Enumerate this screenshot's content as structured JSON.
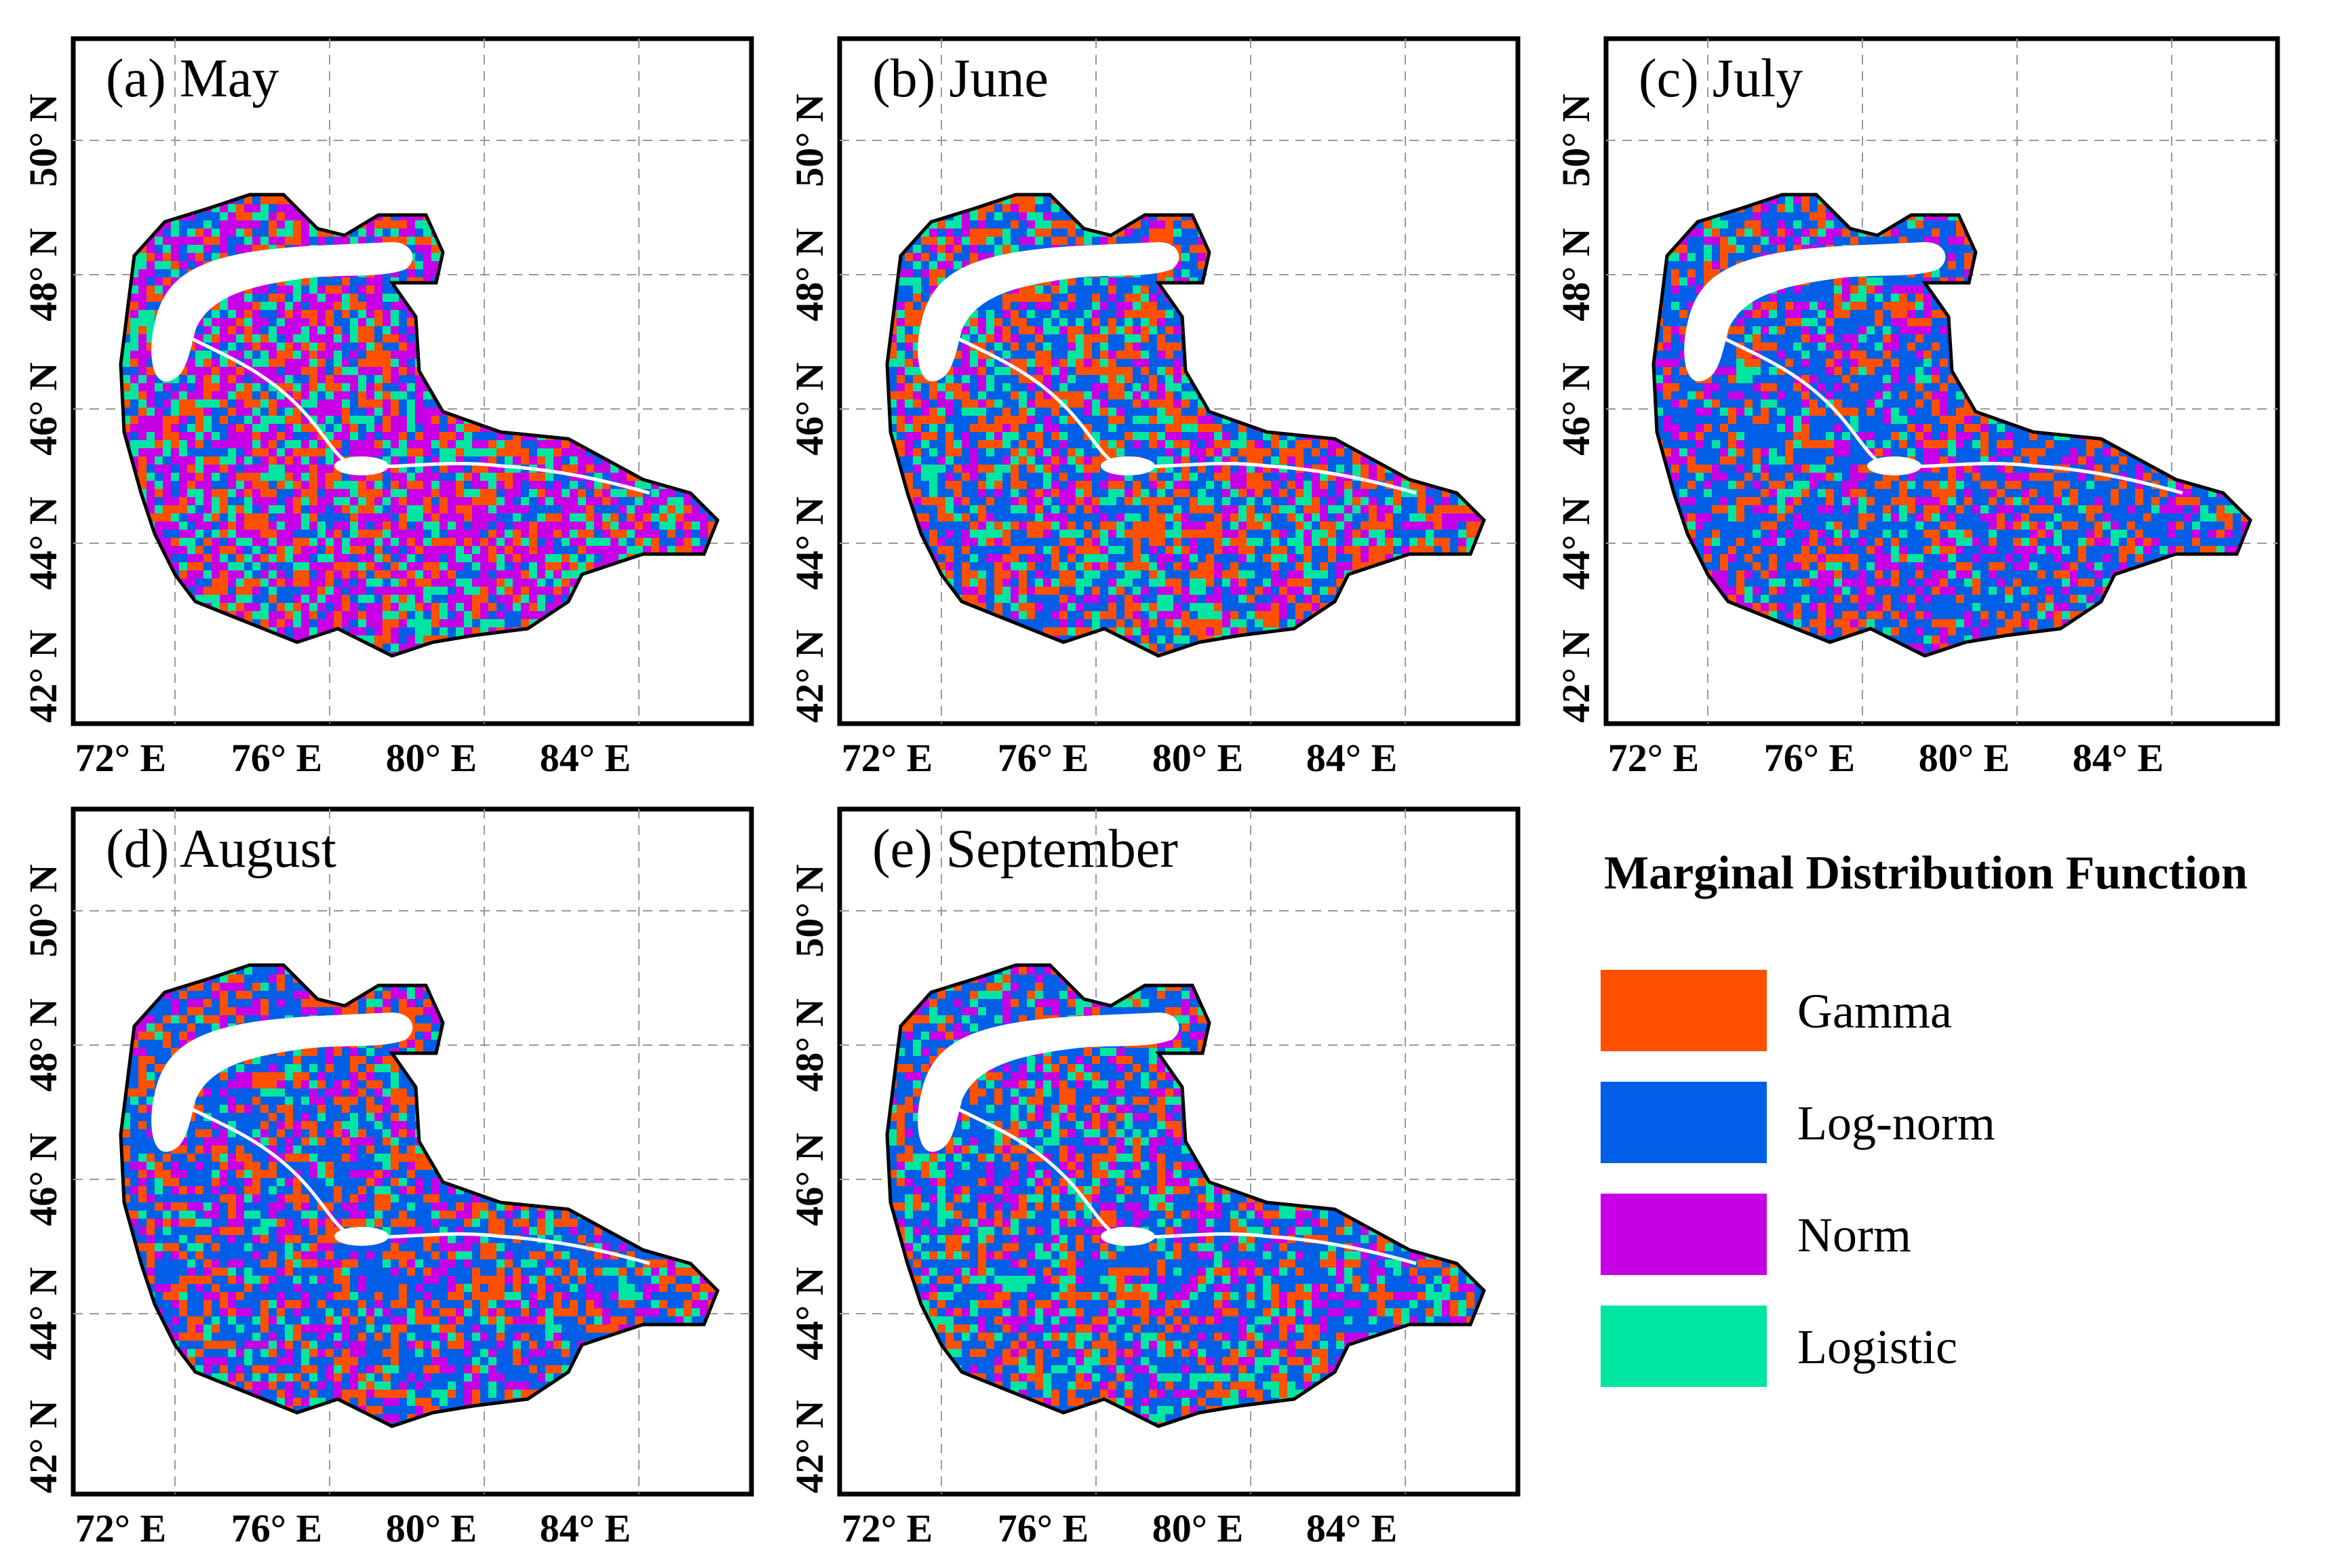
{
  "panels": [
    {
      "id": "a",
      "title": "(a) May"
    },
    {
      "id": "b",
      "title": "(b) June"
    },
    {
      "id": "c",
      "title": "(c) July"
    },
    {
      "id": "d",
      "title": "(d) August"
    },
    {
      "id": "e",
      "title": "(e) September"
    }
  ],
  "axes": {
    "lat_labels": [
      "42° N",
      "44° N",
      "46° N",
      "48° N",
      "50° N"
    ],
    "lon_labels": [
      "72° E",
      "76° E",
      "80° E",
      "84° E"
    ]
  },
  "legend": {
    "title": "Marginal Distribution Function",
    "items": [
      {
        "label": "Gamma",
        "color": "#ff5000"
      },
      {
        "label": "Log-norm",
        "color": "#005fe6"
      },
      {
        "label": "Norm",
        "color": "#c800e6"
      },
      {
        "label": "Logistic",
        "color": "#00e6a0"
      }
    ]
  },
  "mix": {
    "a": [
      0.22,
      0.18,
      0.38,
      0.22
    ],
    "b": [
      0.3,
      0.35,
      0.18,
      0.17
    ],
    "c": [
      0.22,
      0.5,
      0.18,
      0.1
    ],
    "d": [
      0.25,
      0.45,
      0.18,
      0.12
    ],
    "e": [
      0.22,
      0.42,
      0.18,
      0.18
    ]
  }
}
